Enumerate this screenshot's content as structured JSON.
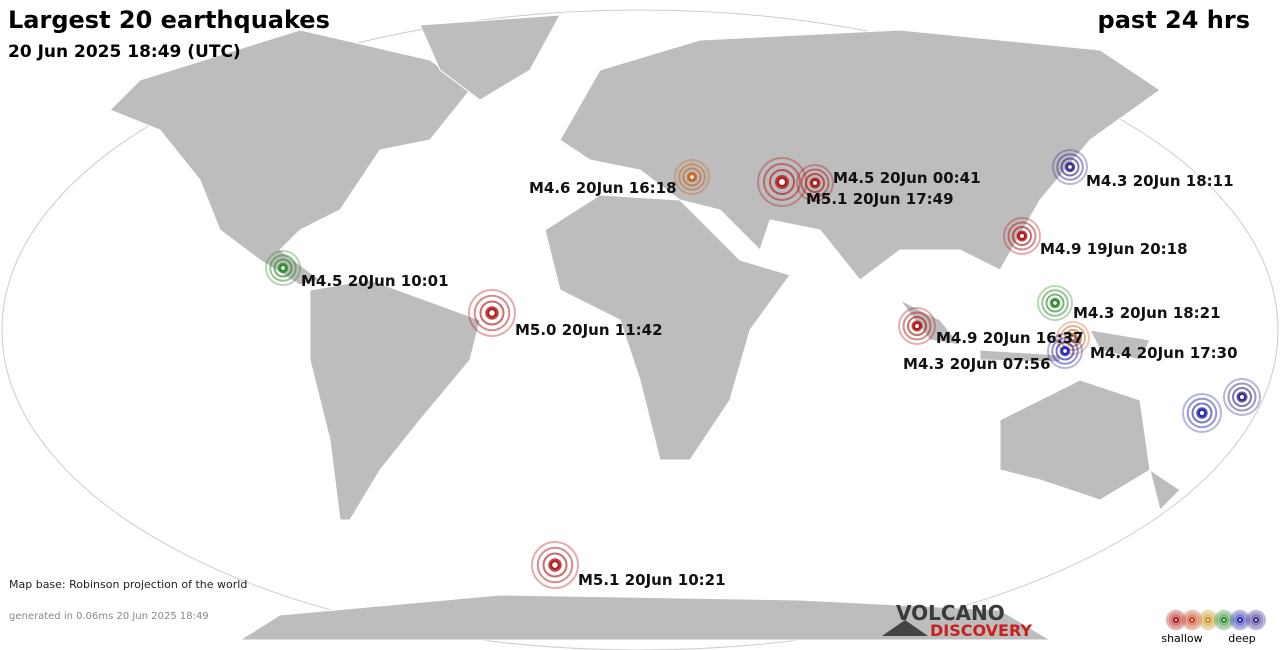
{
  "header": {
    "title": "Largest 20 earthquakes",
    "subtitle": "20 Jun 2025 18:49 (UTC)",
    "period": "past 24 hrs"
  },
  "quakes": [
    {
      "label": "M4.5 20Jun 00:41",
      "color": "#b01818"
    },
    {
      "label": "M5.1 20Jun 17:49",
      "color": "#b01818"
    },
    {
      "label": "M4.6 20Jun 16:18",
      "color": "#c8641e"
    },
    {
      "label": "M4.3 20Jun 18:11",
      "color": "#3a2d8c"
    },
    {
      "label": "M4.9 19Jun 20:18",
      "color": "#b01818"
    },
    {
      "label": "M4.5 20Jun 10:01",
      "color": "#2e8b2e"
    },
    {
      "label": "M5.0 20Jun 11:42",
      "color": "#b01818"
    },
    {
      "label": "M4.3 20Jun 18:21",
      "color": "#2e8b2e"
    },
    {
      "label": "M4.9 20Jun 16:37",
      "color": "#b01818"
    },
    {
      "label": "M4.4 20Jun 17:30",
      "color": "#c8641e"
    },
    {
      "label": "M4.3 20Jun 07:56",
      "color": "#2a2ab0"
    },
    {
      "label": "M5.1 20Jun 10:21",
      "color": "#b01818"
    },
    {
      "color": "#3a2d8c"
    },
    {
      "color": "#2a2ab0"
    }
  ],
  "footer": {
    "map_base": "Map base: Robinson projection of the world",
    "generated": "generated in 0.06ms 20 Jun 2025 18:49"
  },
  "logo": {
    "line1": "VOLCANO",
    "line2": "DISCOVERY"
  },
  "legend": {
    "shallow": "shallow",
    "deep": "deep"
  }
}
